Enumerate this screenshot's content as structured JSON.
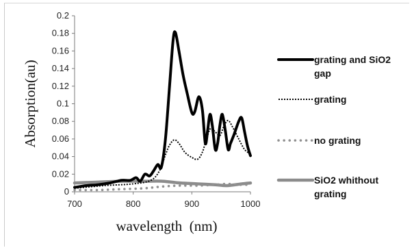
{
  "chart_data": {
    "type": "line",
    "title": "",
    "xlabel": "wavelength  (nm)",
    "ylabel": "Absorption(au)",
    "xlim": [
      700,
      1000
    ],
    "ylim": [
      0,
      0.2
    ],
    "x_ticks": [
      "700",
      "800",
      "900",
      "1000"
    ],
    "y_ticks": [
      "0",
      "0.02",
      "0.04",
      "0.06",
      "0.08",
      "0.1",
      "0.12",
      "0.14",
      "0.16",
      "0.18",
      "0.2"
    ],
    "grid": false,
    "legend_position": "right",
    "series": [
      {
        "name": "grating and SiO2 gap",
        "legend_lines": [
          "grating and SiO2",
          "gap"
        ],
        "color": "#000000",
        "style": "solid-thick",
        "points": [
          [
            700,
            0.005
          ],
          [
            720,
            0.007
          ],
          [
            740,
            0.008
          ],
          [
            760,
            0.01
          ],
          [
            780,
            0.013
          ],
          [
            795,
            0.013
          ],
          [
            805,
            0.016
          ],
          [
            812,
            0.012
          ],
          [
            820,
            0.02
          ],
          [
            828,
            0.018
          ],
          [
            835,
            0.024
          ],
          [
            842,
            0.031
          ],
          [
            848,
            0.028
          ],
          [
            855,
            0.06
          ],
          [
            862,
            0.12
          ],
          [
            868,
            0.172
          ],
          [
            872,
            0.181
          ],
          [
            878,
            0.16
          ],
          [
            885,
            0.133
          ],
          [
            892,
            0.112
          ],
          [
            900,
            0.09
          ],
          [
            905,
            0.091
          ],
          [
            912,
            0.108
          ],
          [
            918,
            0.093
          ],
          [
            923,
            0.055
          ],
          [
            927,
            0.07
          ],
          [
            931,
            0.088
          ],
          [
            935,
            0.075
          ],
          [
            940,
            0.048
          ],
          [
            944,
            0.055
          ],
          [
            948,
            0.076
          ],
          [
            952,
            0.088
          ],
          [
            957,
            0.07
          ],
          [
            962,
            0.048
          ],
          [
            966,
            0.055
          ],
          [
            972,
            0.065
          ],
          [
            980,
            0.08
          ],
          [
            985,
            0.084
          ],
          [
            990,
            0.068
          ],
          [
            995,
            0.052
          ],
          [
            1000,
            0.041
          ]
        ]
      },
      {
        "name": "grating",
        "legend_lines": [
          "grating"
        ],
        "color": "#000000",
        "style": "dotted",
        "points": [
          [
            700,
            0.004
          ],
          [
            750,
            0.007
          ],
          [
            800,
            0.009
          ],
          [
            830,
            0.013
          ],
          [
            845,
            0.024
          ],
          [
            855,
            0.042
          ],
          [
            862,
            0.053
          ],
          [
            870,
            0.059
          ],
          [
            878,
            0.055
          ],
          [
            888,
            0.045
          ],
          [
            900,
            0.039
          ],
          [
            910,
            0.037
          ],
          [
            918,
            0.045
          ],
          [
            925,
            0.06
          ],
          [
            932,
            0.072
          ],
          [
            940,
            0.068
          ],
          [
            948,
            0.064
          ],
          [
            955,
            0.075
          ],
          [
            962,
            0.081
          ],
          [
            970,
            0.073
          ],
          [
            980,
            0.06
          ],
          [
            990,
            0.048
          ],
          [
            1000,
            0.043
          ]
        ]
      },
      {
        "name": "no grating",
        "legend_lines": [
          "no grating"
        ],
        "color": "#909090",
        "style": "dotted-gray",
        "points": [
          [
            700,
            0.002
          ],
          [
            740,
            0.002
          ],
          [
            780,
            0.003
          ],
          [
            820,
            0.004
          ],
          [
            850,
            0.006
          ],
          [
            880,
            0.007
          ],
          [
            910,
            0.007
          ],
          [
            940,
            0.008
          ],
          [
            960,
            0.009
          ],
          [
            980,
            0.008
          ],
          [
            1000,
            0.008
          ]
        ]
      },
      {
        "name": "SiO2 whithout grating",
        "legend_lines": [
          "SiO2 whithout",
          "grating"
        ],
        "color": "#8c8c8c",
        "style": "solid-gray-thick",
        "points": [
          [
            700,
            0.01
          ],
          [
            740,
            0.011
          ],
          [
            780,
            0.012
          ],
          [
            820,
            0.012
          ],
          [
            850,
            0.012
          ],
          [
            880,
            0.01
          ],
          [
            910,
            0.009
          ],
          [
            940,
            0.008
          ],
          [
            960,
            0.007
          ],
          [
            985,
            0.009
          ],
          [
            1000,
            0.01
          ]
        ]
      }
    ]
  }
}
